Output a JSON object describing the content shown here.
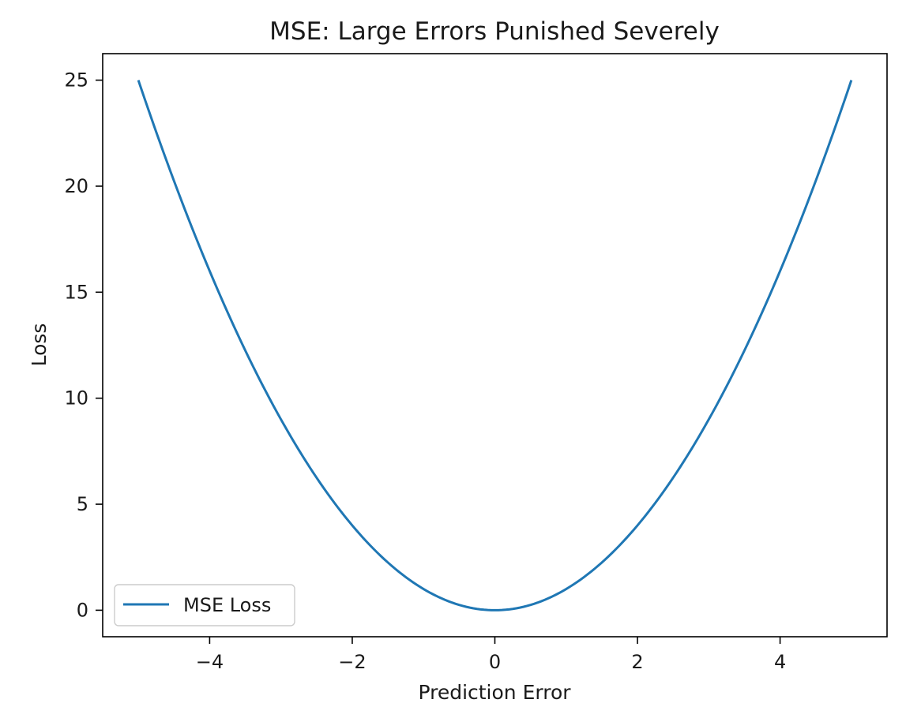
{
  "chart_data": {
    "type": "line",
    "title": "MSE: Large Errors Punished Severely",
    "xlabel": "Prediction Error",
    "ylabel": "Loss",
    "xlim": [
      -5.5,
      5.5
    ],
    "ylim": [
      -1.25,
      26.25
    ],
    "x_ticks": [
      -4,
      -2,
      0,
      2,
      4
    ],
    "x_tick_labels": [
      "−4",
      "−2",
      "0",
      "2",
      "4"
    ],
    "y_ticks": [
      0,
      5,
      10,
      15,
      20,
      25
    ],
    "y_tick_labels": [
      "0",
      "5",
      "10",
      "15",
      "20",
      "25"
    ],
    "grid": false,
    "legend": {
      "position": "lower-left",
      "entries": [
        "MSE Loss"
      ]
    },
    "series": [
      {
        "name": "MSE Loss",
        "color": "#1f77b4",
        "x": [
          -5,
          -4.5,
          -4,
          -3.5,
          -3,
          -2.5,
          -2,
          -1.5,
          -1,
          -0.5,
          0,
          0.5,
          1,
          1.5,
          2,
          2.5,
          3,
          3.5,
          4,
          4.5,
          5
        ],
        "y": [
          25,
          20.25,
          16,
          12.25,
          9,
          6.25,
          4,
          2.25,
          1,
          0.25,
          0,
          0.25,
          1,
          2.25,
          4,
          6.25,
          9,
          12.25,
          16,
          20.25,
          25
        ]
      }
    ]
  }
}
